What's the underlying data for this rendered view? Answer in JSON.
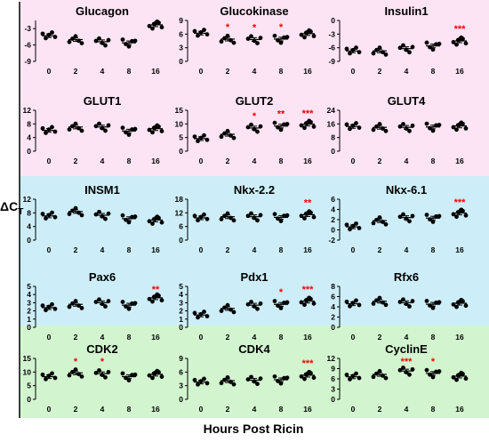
{
  "y_axis_label": {
    "main": "ΔC",
    "sub": "T"
  },
  "x_axis_label": "Hours Post Ricin",
  "colors": {
    "group_endocrine": "#fce4f4",
    "group_transcription": "#cdeef8",
    "group_cell_cycle": "#d2f5cf",
    "significance": "#ff0000",
    "points": "#000000"
  },
  "chart_data": [
    {
      "type": "scatter",
      "title": "Glucagon",
      "categories": [
        "0",
        "2",
        "4",
        "8",
        "16"
      ],
      "ylim": [
        -9,
        -1.5
      ],
      "yticks": [
        -9,
        -6,
        -3
      ],
      "ylabels": [
        "-9",
        "-6",
        "-3"
      ],
      "values": [
        -4.3,
        -5.0,
        -5.4,
        -5.6,
        -2.3
      ],
      "significance": [
        "",
        "",
        "",
        "",
        ""
      ]
    },
    {
      "type": "scatter",
      "title": "Glucokinase",
      "categories": [
        "0",
        "2",
        "4",
        "8",
        "16"
      ],
      "ylim": [
        0,
        9
      ],
      "yticks": [
        0,
        3,
        6,
        9
      ],
      "ylabels": [
        "0",
        "3",
        "6",
        "9"
      ],
      "values": [
        6.2,
        4.9,
        4.8,
        4.9,
        6.1
      ],
      "significance": [
        "",
        "*",
        "*",
        "*",
        ""
      ]
    },
    {
      "type": "scatter",
      "title": "Insulin1",
      "categories": [
        "0",
        "2",
        "4",
        "8",
        "16"
      ],
      "ylim": [
        -9,
        0
      ],
      "yticks": [
        -9,
        -6,
        -3,
        0
      ],
      "ylabels": [
        "-9",
        "-6",
        "-3",
        "0"
      ],
      "values": [
        -6.7,
        -6.7,
        -6.2,
        -5.6,
        -4.5
      ],
      "significance": [
        "",
        "",
        "",
        "",
        "***"
      ]
    },
    {
      "type": "scatter",
      "title": "GLUT1",
      "categories": [
        "0",
        "2",
        "4",
        "8",
        "16"
      ],
      "ylim": [
        0,
        12
      ],
      "yticks": [
        0,
        4,
        8,
        12
      ],
      "ylabels": [
        "0",
        "4",
        "8",
        "12"
      ],
      "values": [
        6.1,
        7.1,
        7.1,
        5.9,
        6.6
      ],
      "significance": [
        "",
        "",
        "",
        "",
        ""
      ]
    },
    {
      "type": "scatter",
      "title": "GLUT2",
      "categories": [
        "0",
        "2",
        "4",
        "8",
        "16"
      ],
      "ylim": [
        0,
        15
      ],
      "yticks": [
        0,
        5,
        10,
        15
      ],
      "ylabels": [
        "0",
        "5",
        "10",
        "15"
      ],
      "values": [
        4.6,
        6.2,
        8.5,
        9.2,
        9.9
      ],
      "significance": [
        "",
        "",
        "*",
        "**",
        "***"
      ]
    },
    {
      "type": "scatter",
      "title": "GLUT4",
      "categories": [
        "0",
        "2",
        "4",
        "8",
        "16"
      ],
      "ylim": [
        0,
        24
      ],
      "yticks": [
        0,
        8,
        16,
        24
      ],
      "ylabels": [
        "0",
        "8",
        "16",
        "24"
      ],
      "values": [
        14.5,
        14.0,
        14.0,
        14.2,
        14.8
      ],
      "significance": [
        "",
        "",
        "",
        "",
        ""
      ]
    },
    {
      "type": "scatter",
      "title": "INSM1",
      "categories": [
        "0",
        "2",
        "4",
        "8",
        "16"
      ],
      "ylim": [
        0,
        12
      ],
      "yticks": [
        0,
        4,
        8,
        12
      ],
      "ylabels": [
        "0",
        "4",
        "8",
        "12"
      ],
      "values": [
        7.1,
        8.4,
        7.3,
        6.3,
        5.9
      ],
      "significance": [
        "",
        "",
        "",
        "",
        ""
      ]
    },
    {
      "type": "scatter",
      "title": "Nkx-2.2",
      "categories": [
        "0",
        "2",
        "4",
        "8",
        "16"
      ],
      "ylim": [
        0,
        18
      ],
      "yticks": [
        0,
        6,
        12,
        18
      ],
      "ylabels": [
        "0",
        "6",
        "12",
        "18"
      ],
      "values": [
        9.8,
        10.3,
        10.3,
        10.0,
        11.2
      ],
      "significance": [
        "",
        "",
        "",
        "",
        "**"
      ]
    },
    {
      "type": "scatter",
      "title": "Nkx-6.1",
      "categories": [
        "0",
        "2",
        "4",
        "8",
        "16"
      ],
      "ylim": [
        -2,
        6
      ],
      "yticks": [
        -2,
        0,
        2,
        4,
        6
      ],
      "ylabels": [
        "-2",
        "0",
        "2",
        "4",
        "6"
      ],
      "values": [
        0.6,
        1.8,
        2.4,
        2.3,
        3.3
      ],
      "significance": [
        "",
        "",
        "",
        "",
        "***"
      ]
    },
    {
      "type": "scatter",
      "title": "Pax6",
      "categories": [
        "0",
        "2",
        "4",
        "8",
        "16"
      ],
      "ylim": [
        0,
        5
      ],
      "yticks": [
        0,
        1,
        2,
        3,
        4,
        5
      ],
      "ylabels": [
        "0",
        "1",
        "2",
        "3",
        "4",
        "5"
      ],
      "values": [
        2.4,
        2.8,
        3.0,
        2.7,
        3.6
      ],
      "significance": [
        "",
        "",
        "",
        "",
        "**"
      ]
    },
    {
      "type": "scatter",
      "title": "Pdx1",
      "categories": [
        "0",
        "2",
        "4",
        "8",
        "16"
      ],
      "ylim": [
        0,
        5
      ],
      "yticks": [
        0,
        1,
        2,
        3,
        4,
        5
      ],
      "ylabels": [
        "0",
        "1",
        "2",
        "3",
        "4",
        "5"
      ],
      "values": [
        1.5,
        2.3,
        2.7,
        2.8,
        3.2
      ],
      "significance": [
        "",
        "",
        "",
        "*",
        "***"
      ]
    },
    {
      "type": "scatter",
      "title": "Rfx6",
      "categories": [
        "0",
        "2",
        "4",
        "8",
        "16"
      ],
      "ylim": [
        0,
        8
      ],
      "yticks": [
        0,
        2,
        4,
        6,
        8
      ],
      "ylabels": [
        "0",
        "2",
        "4",
        "6",
        "8"
      ],
      "values": [
        4.6,
        5.1,
        4.8,
        4.5,
        4.7
      ],
      "significance": [
        "",
        "",
        "",
        "",
        ""
      ]
    },
    {
      "type": "scatter",
      "title": "CDK2",
      "categories": [
        "0",
        "2",
        "4",
        "8",
        "16"
      ],
      "ylim": [
        0,
        15
      ],
      "yticks": [
        0,
        5,
        10,
        15
      ],
      "ylabels": [
        "0",
        "5",
        "10",
        "15"
      ],
      "values": [
        8.3,
        9.7,
        9.4,
        8.3,
        9.2
      ],
      "significance": [
        "",
        "*",
        "*",
        "",
        ""
      ]
    },
    {
      "type": "scatter",
      "title": "CDK4",
      "categories": [
        "0",
        "2",
        "4",
        "8",
        "16"
      ],
      "ylim": [
        0,
        9
      ],
      "yticks": [
        0,
        3,
        6,
        9
      ],
      "ylabels": [
        "0",
        "3",
        "6",
        "9"
      ],
      "values": [
        3.8,
        4.1,
        4.2,
        4.3,
        5.3
      ],
      "significance": [
        "",
        "",
        "",
        "",
        "***"
      ]
    },
    {
      "type": "scatter",
      "title": "CyclinE",
      "categories": [
        "0",
        "2",
        "4",
        "8",
        "16"
      ],
      "ylim": [
        0,
        12
      ],
      "yticks": [
        0,
        3,
        6,
        9,
        12
      ],
      "ylabels": [
        "0",
        "3",
        "6",
        "9",
        "12"
      ],
      "values": [
        6.6,
        7.3,
        8.3,
        7.6,
        6.8
      ],
      "significance": [
        "",
        "",
        "***",
        "*",
        ""
      ]
    }
  ]
}
